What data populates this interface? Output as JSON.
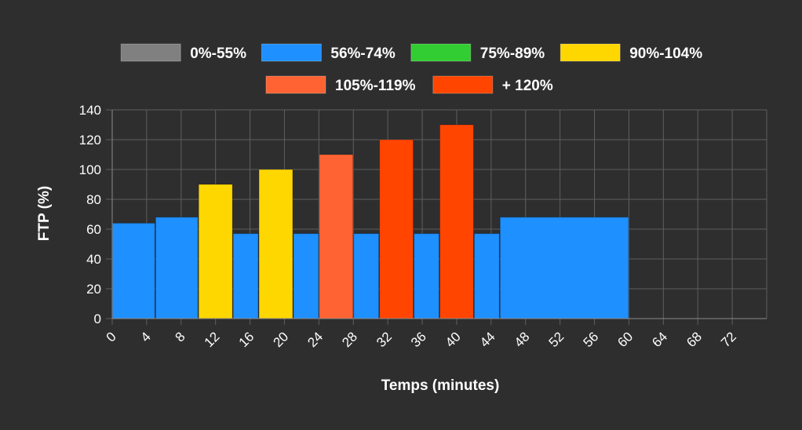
{
  "chart_data": {
    "type": "bar",
    "xlabel": "Temps (minutes)",
    "ylabel": "FTP (%)",
    "xlim": [
      0,
      76
    ],
    "ylim": [
      0,
      140
    ],
    "x_ticks": [
      "0",
      "4",
      "8",
      "12",
      "16",
      "20",
      "24",
      "28",
      "32",
      "36",
      "40",
      "44",
      "48",
      "52",
      "56",
      "60",
      "64",
      "68",
      "72"
    ],
    "y_ticks": [
      "0",
      "20",
      "40",
      "60",
      "80",
      "100",
      "120",
      "140"
    ],
    "grid": true,
    "legend_position": "top",
    "legend": [
      {
        "label": "0%-55%",
        "color": "#808080"
      },
      {
        "label": "56%-74%",
        "color": "#1e90ff"
      },
      {
        "label": "75%-89%",
        "color": "#32cd32"
      },
      {
        "label": "90%-104%",
        "color": "#ffd700"
      },
      {
        "label": "105%-119%",
        "color": "#ff6333"
      },
      {
        "label": "+ 120%",
        "color": "#ff4500"
      }
    ],
    "segments": [
      {
        "start": 0,
        "end": 5,
        "value": 64,
        "zone": "56%-74%"
      },
      {
        "start": 5,
        "end": 10,
        "value": 68,
        "zone": "56%-74%"
      },
      {
        "start": 10,
        "end": 14,
        "value": 90,
        "zone": "90%-104%"
      },
      {
        "start": 14,
        "end": 17,
        "value": 57,
        "zone": "56%-74%"
      },
      {
        "start": 17,
        "end": 21,
        "value": 100,
        "zone": "90%-104%"
      },
      {
        "start": 21,
        "end": 24,
        "value": 57,
        "zone": "56%-74%"
      },
      {
        "start": 24,
        "end": 28,
        "value": 110,
        "zone": "105%-119%"
      },
      {
        "start": 28,
        "end": 31,
        "value": 57,
        "zone": "56%-74%"
      },
      {
        "start": 31,
        "end": 35,
        "value": 120,
        "zone": "+ 120%"
      },
      {
        "start": 35,
        "end": 38,
        "value": 57,
        "zone": "56%-74%"
      },
      {
        "start": 38,
        "end": 42,
        "value": 130,
        "zone": "+ 120%"
      },
      {
        "start": 42,
        "end": 45,
        "value": 57,
        "zone": "56%-74%"
      },
      {
        "start": 45,
        "end": 60,
        "value": 68,
        "zone": "56%-74%"
      }
    ]
  }
}
